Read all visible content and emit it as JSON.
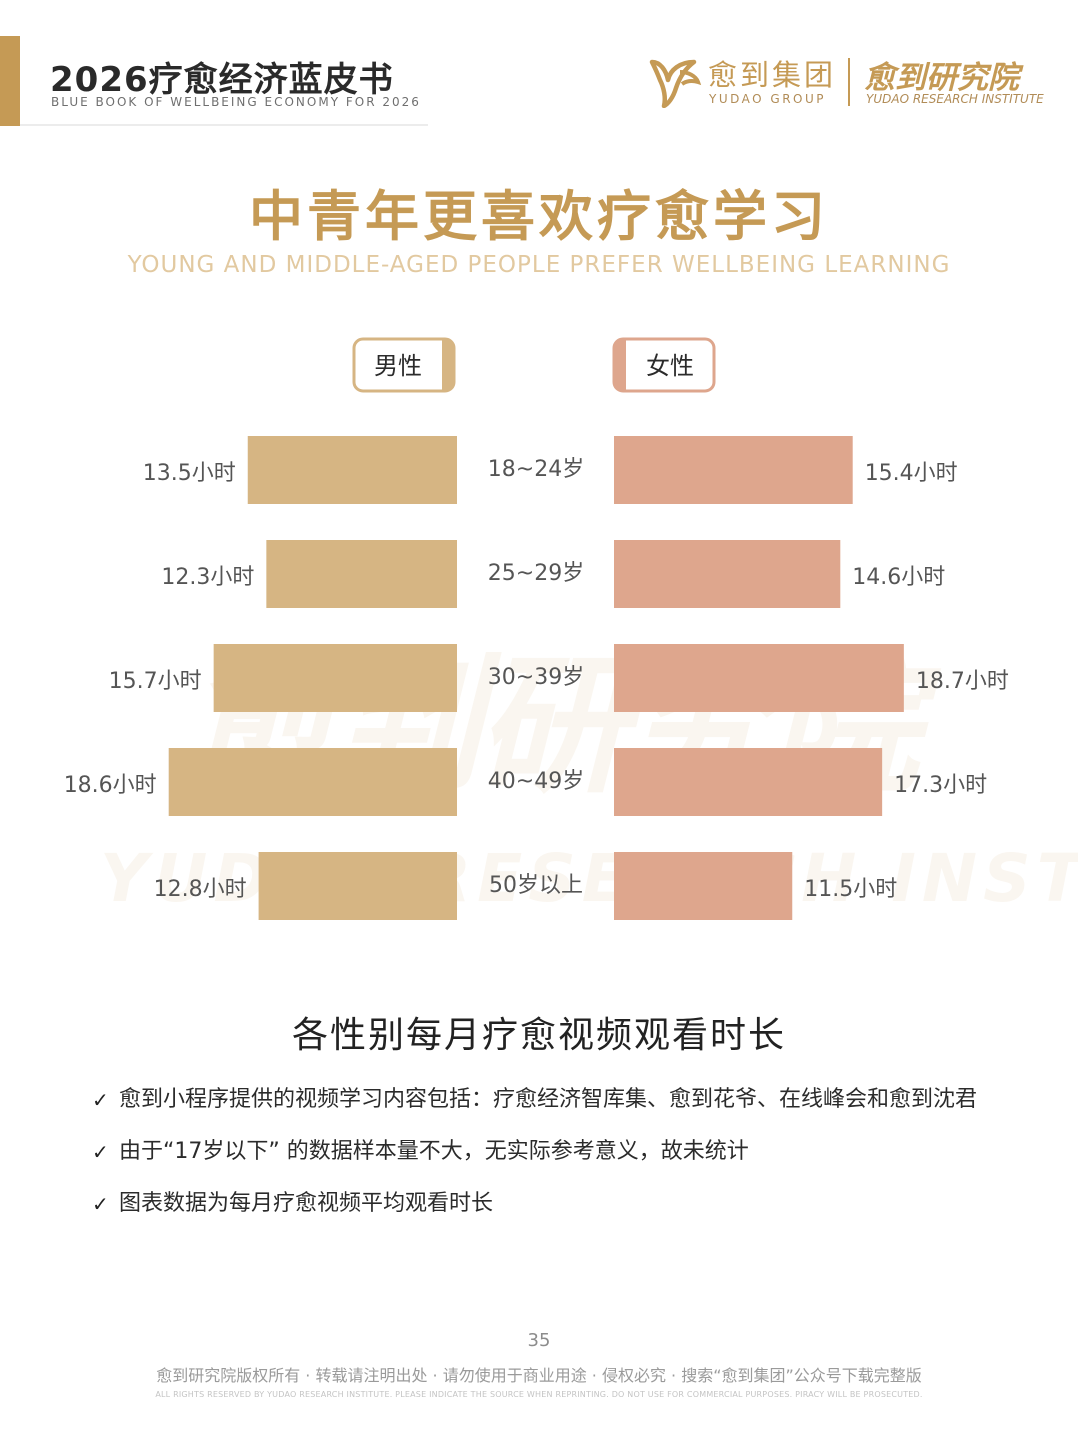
{
  "header": {
    "title": "2026疗愈经济蓝皮书",
    "subtitle": "BLUE BOOK OF WELLBEING ECONOMY FOR 2026",
    "brand_name_cn": "愈到集团",
    "brand_name_en": "YUDAO GROUP",
    "institute_cn": "愈到研究院",
    "institute_en": "YUDAO RESEARCH INSTITUTE"
  },
  "page_title": "中青年更喜欢疗愈学习",
  "page_subtitle": "YOUNG AND MIDDLE-AGED PEOPLE PREFER WELLBEING LEARNING",
  "watermark": {
    "cn": "愈到研究院",
    "en": "YUDAO RESEARCH INSTITUTE"
  },
  "colors": {
    "accent": "#c59a55",
    "male": "#d6b583",
    "female": "#dea68d",
    "subtitle": "#e2c9a0"
  },
  "chart_data": {
    "type": "bar",
    "orientation": "horizontal-butterfly",
    "unit": "小时",
    "categories": [
      "18~24岁",
      "25~29岁",
      "30~39岁",
      "40~49岁",
      "50岁以上"
    ],
    "series": [
      {
        "name": "男性",
        "values": [
          13.5,
          12.3,
          15.7,
          18.6,
          12.8
        ]
      },
      {
        "name": "女性",
        "values": [
          15.4,
          14.6,
          18.7,
          17.3,
          11.5
        ]
      }
    ],
    "data_labels": {
      "男性": [
        "13.5小时",
        "12.3小时",
        "15.7小时",
        "18.6小时",
        "12.8小时"
      ],
      "女性": [
        "15.4小时",
        "14.6小时",
        "18.7小时",
        "17.3小时",
        "11.5小时"
      ]
    },
    "legend_position": "top",
    "grid": false,
    "title": "各性别每月疗愈视频观看时长"
  },
  "notes": [
    "愈到小程序提供的视频学习内容包括：疗愈经济智库集、愈到花爷、在线峰会和愈到沈君",
    "由于“17岁以下” 的数据样本量不大，无实际参考意义，故未统计",
    "图表数据为每月疗愈视频平均观看时长"
  ],
  "footer": {
    "page_number": "35",
    "copyright_cn": "愈到研究院版权所有 · 转载请注明出处 · 请勿使用于商业用途 · 侵权必究 · 搜索“愈到集团”公众号下载完整版",
    "copyright_en": "ALL RIGHTS RESERVED BY YUDAO RESEARCH INSTITUTE. PLEASE INDICATE THE SOURCE WHEN REPRINTING. DO NOT USE FOR COMMERCIAL PURPOSES. PIRACY WILL BE PROSECUTED."
  }
}
